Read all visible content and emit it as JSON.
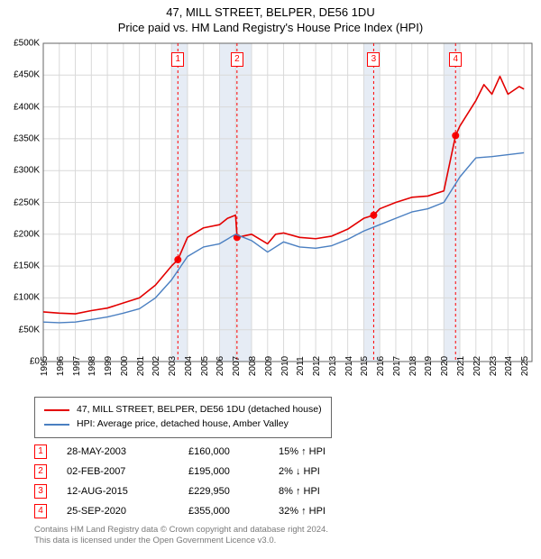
{
  "title_line1": "47, MILL STREET, BELPER, DE56 1DU",
  "title_line2": "Price paid vs. HM Land Registry's House Price Index (HPI)",
  "chart": {
    "type": "line",
    "background_color": "#ffffff",
    "grid_color": "#d9d9d9",
    "axis_color": "#666666",
    "shade_color": "#e6ecf5",
    "shade_years": [
      [
        2003,
        2004
      ],
      [
        2006,
        2008
      ],
      [
        2015,
        2016
      ],
      [
        2020,
        2021
      ]
    ],
    "event_line_color": "#ff0000",
    "event_dash": "3,3",
    "x": {
      "min": 1995,
      "max": 2025.5,
      "ticks_step": 1,
      "fontsize": 10,
      "rotate": -90
    },
    "y": {
      "min": 0,
      "max": 500000,
      "tick_step": 50000,
      "fontsize": 10,
      "prefix": "£",
      "format": "K"
    },
    "series": [
      {
        "id": "property",
        "label": "47, MILL STREET, BELPER, DE56 1DU (detached house)",
        "color": "#e30000",
        "width": 1.6,
        "points": [
          [
            1995,
            78000
          ],
          [
            1996,
            76000
          ],
          [
            1997,
            75000
          ],
          [
            1998,
            80000
          ],
          [
            1999,
            84000
          ],
          [
            2000,
            92000
          ],
          [
            2001,
            100000
          ],
          [
            2002,
            120000
          ],
          [
            2003,
            150000
          ],
          [
            2003.4,
            160000
          ],
          [
            2004,
            195000
          ],
          [
            2005,
            210000
          ],
          [
            2006,
            215000
          ],
          [
            2006.5,
            225000
          ],
          [
            2007,
            230000
          ],
          [
            2007.1,
            195000
          ],
          [
            2008,
            200000
          ],
          [
            2009,
            185000
          ],
          [
            2009.5,
            200000
          ],
          [
            2010,
            202000
          ],
          [
            2011,
            195000
          ],
          [
            2012,
            193000
          ],
          [
            2013,
            197000
          ],
          [
            2014,
            208000
          ],
          [
            2015,
            225000
          ],
          [
            2015.62,
            229950
          ],
          [
            2016,
            240000
          ],
          [
            2017,
            250000
          ],
          [
            2018,
            258000
          ],
          [
            2019,
            260000
          ],
          [
            2020,
            268000
          ],
          [
            2020.73,
            355000
          ],
          [
            2021,
            370000
          ],
          [
            2022,
            410000
          ],
          [
            2022.5,
            435000
          ],
          [
            2023,
            420000
          ],
          [
            2023.5,
            448000
          ],
          [
            2024,
            420000
          ],
          [
            2024.7,
            432000
          ],
          [
            2025,
            428000
          ]
        ]
      },
      {
        "id": "hpi",
        "label": "HPI: Average price, detached house, Amber Valley",
        "color": "#4a7fc1",
        "width": 1.4,
        "points": [
          [
            1995,
            62000
          ],
          [
            1996,
            61000
          ],
          [
            1997,
            62000
          ],
          [
            1998,
            66000
          ],
          [
            1999,
            70000
          ],
          [
            2000,
            76000
          ],
          [
            2001,
            83000
          ],
          [
            2002,
            100000
          ],
          [
            2003,
            128000
          ],
          [
            2004,
            165000
          ],
          [
            2005,
            180000
          ],
          [
            2006,
            185000
          ],
          [
            2007,
            200000
          ],
          [
            2008,
            190000
          ],
          [
            2009,
            172000
          ],
          [
            2010,
            188000
          ],
          [
            2011,
            180000
          ],
          [
            2012,
            178000
          ],
          [
            2013,
            182000
          ],
          [
            2014,
            192000
          ],
          [
            2015,
            205000
          ],
          [
            2016,
            215000
          ],
          [
            2017,
            225000
          ],
          [
            2018,
            235000
          ],
          [
            2019,
            240000
          ],
          [
            2020,
            250000
          ],
          [
            2021,
            290000
          ],
          [
            2022,
            320000
          ],
          [
            2023,
            322000
          ],
          [
            2024,
            325000
          ],
          [
            2025,
            328000
          ]
        ]
      }
    ],
    "events": [
      {
        "idx": "1",
        "year": 2003.4,
        "value": 160000
      },
      {
        "idx": "2",
        "year": 2007.09,
        "value": 195000
      },
      {
        "idx": "3",
        "year": 2015.62,
        "value": 229950
      },
      {
        "idx": "4",
        "year": 2020.73,
        "value": 355000
      }
    ]
  },
  "legend": {
    "border_color": "#666666",
    "fontsize": 10.5
  },
  "sales": [
    {
      "idx": "1",
      "date": "28-MAY-2003",
      "price": "£160,000",
      "pct": "15%",
      "dir": "↑",
      "suffix": "HPI"
    },
    {
      "idx": "2",
      "date": "02-FEB-2007",
      "price": "£195,000",
      "pct": "2%",
      "dir": "↓",
      "suffix": "HPI"
    },
    {
      "idx": "3",
      "date": "12-AUG-2015",
      "price": "£229,950",
      "pct": "8%",
      "dir": "↑",
      "suffix": "HPI"
    },
    {
      "idx": "4",
      "date": "25-SEP-2020",
      "price": "£355,000",
      "pct": "32%",
      "dir": "↑",
      "suffix": "HPI"
    }
  ],
  "footer_line1": "Contains HM Land Registry data © Crown copyright and database right 2024.",
  "footer_line2": "This data is licensed under the Open Government Licence v3.0."
}
